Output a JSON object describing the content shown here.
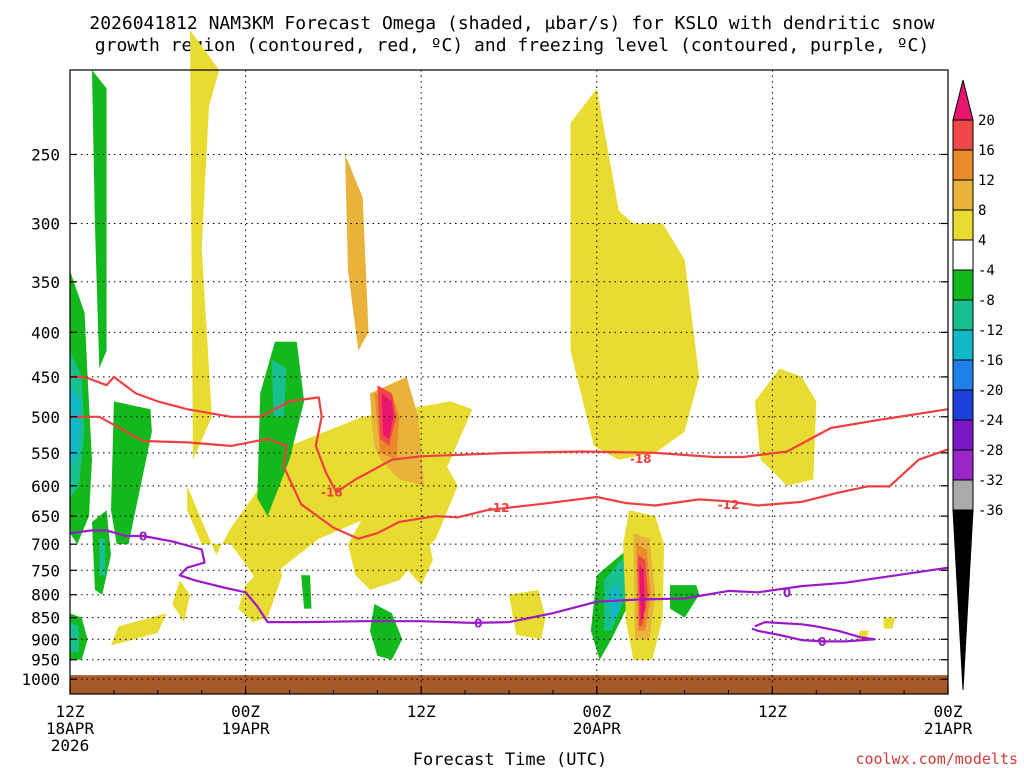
{
  "chart_data": {
    "type": "heatmap",
    "title_line1": "2026041812 NAM3KM Forecast Omega (shaded, μbar/s) for KSLO with dendritic snow",
    "title_line2": "growth region (contoured, red, ºC) and freezing level (contoured, purple, ºC)",
    "xlabel": "Forecast Time (UTC)",
    "credit": "coolwx.com/modelts",
    "x_ticks": [
      {
        "hours": 0,
        "line1": "12Z",
        "line2": "18APR",
        "line3": "2026"
      },
      {
        "hours": 12,
        "line1": "00Z",
        "line2": "19APR",
        "line3": ""
      },
      {
        "hours": 24,
        "line1": "12Z",
        "line2": "",
        "line3": ""
      },
      {
        "hours": 36,
        "line1": "00Z",
        "line2": "20APR",
        "line3": ""
      },
      {
        "hours": 48,
        "line1": "12Z",
        "line2": "",
        "line3": ""
      },
      {
        "hours": 60,
        "line1": "00Z",
        "line2": "21APR",
        "line3": ""
      }
    ],
    "xlim": [
      0,
      60
    ],
    "y_ticks": [
      250,
      300,
      350,
      400,
      450,
      500,
      550,
      600,
      650,
      700,
      750,
      800,
      850,
      900,
      950,
      1000
    ],
    "ylim": [
      1000,
      200
    ],
    "grid": true,
    "colorbar": {
      "labels": [
        "20",
        "16",
        "12",
        "8",
        "4",
        "-4",
        "-8",
        "-12",
        "-16",
        "-20",
        "-24",
        "-28",
        "-32",
        "-36"
      ],
      "colors": [
        "#e8156e",
        "#f04848",
        "#eb8a2a",
        "#e8b23b",
        "#e8dc32",
        "#ffffff",
        "#12b81c",
        "#18c08f",
        "#12b8c8",
        "#1f80e8",
        "#1f40d8",
        "#7a18c8",
        "#9a28c8",
        "#aaaaaa",
        "#000000"
      ]
    },
    "omega_regions": [
      {
        "color": "#e8dc32",
        "hours": [
          8.2,
          10.2,
          9.5,
          9.0,
          9.7,
          8.4
        ],
        "p": [
          180,
          200,
          220,
          320,
          500,
          560
        ]
      },
      {
        "color": "#e8dc32",
        "hours": [
          8.0,
          10.0,
          11.0,
          15.0,
          20.0,
          26.0,
          27.5,
          26.0,
          25.0,
          17.0,
          13.0,
          11.0,
          9.0,
          8.0
        ],
        "p": [
          600,
          720,
          670,
          540,
          500,
          480,
          490,
          560,
          605,
          690,
          780,
          700,
          700,
          640
        ]
      },
      {
        "color": "#e8dc32",
        "hours": [
          19.0,
          21.0,
          23.0,
          25.5,
          26.5,
          25.0,
          22.5,
          20.5,
          19.5
        ],
        "p": [
          700,
          610,
          580,
          560,
          600,
          690,
          770,
          790,
          760
        ]
      },
      {
        "color": "#e8dc32",
        "hours": [
          34.2,
          36.0,
          37.5,
          38.5,
          40.5,
          42.0,
          43.0,
          42.0,
          40.0,
          37.5,
          35.8,
          34.2
        ],
        "p": [
          230,
          210,
          290,
          300,
          300,
          330,
          450,
          520,
          550,
          560,
          540,
          420
        ]
      },
      {
        "color": "#e8dc32",
        "hours": [
          48.5,
          50.0,
          51.0,
          50.8,
          49.0,
          47.2,
          46.8
        ],
        "p": [
          440,
          450,
          480,
          590,
          600,
          560,
          480
        ]
      },
      {
        "color": "#e8dc32",
        "hours": [
          12.0,
          14.0,
          14.5,
          13.5,
          12.5,
          11.5
        ],
        "p": [
          780,
          720,
          760,
          850,
          860,
          830
        ]
      },
      {
        "color": "#e8dc32",
        "hours": [
          7.5,
          8.2,
          7.8,
          7.0
        ],
        "p": [
          770,
          800,
          860,
          820
        ]
      },
      {
        "color": "#e8dc32",
        "hours": [
          3.3,
          6.6,
          6.0,
          2.8
        ],
        "p": [
          870,
          840,
          885,
          915
        ]
      },
      {
        "color": "#e8dc32",
        "hours": [
          23.0,
          24.5,
          24.8,
          24.0,
          22.8
        ],
        "p": [
          680,
          690,
          730,
          780,
          740
        ]
      },
      {
        "color": "#e8dc32",
        "hours": [
          30.0,
          32.0,
          32.5,
          32.2,
          30.5
        ],
        "p": [
          800,
          790,
          850,
          900,
          890
        ]
      },
      {
        "color": "#e8dc32",
        "hours": [
          55.6,
          56.4,
          56.2,
          55.6
        ],
        "p": [
          850,
          850,
          875,
          875
        ]
      },
      {
        "color": "#e8dc32",
        "hours": [
          54.0,
          54.6,
          54.4,
          53.8
        ],
        "p": [
          880,
          880,
          900,
          900
        ]
      },
      {
        "color": "#e8b23b",
        "hours": [
          18.8,
          20.0,
          20.4,
          19.7,
          19.0
        ],
        "p": [
          250,
          280,
          400,
          420,
          340
        ]
      },
      {
        "color": "#e8b23b",
        "hours": [
          20.5,
          23.0,
          23.8,
          24.2,
          22.5,
          21.2,
          20.8,
          20.6
        ],
        "p": [
          470,
          450,
          500,
          600,
          590,
          560,
          540,
          500
        ]
      },
      {
        "color": "#eb8a2a",
        "hours": [
          20.8,
          22.0,
          22.5,
          22.3,
          21.2
        ],
        "p": [
          470,
          470,
          500,
          560,
          550
        ]
      },
      {
        "color": "#f04848",
        "hours": [
          21.0,
          22.0,
          22.3,
          21.8,
          21.2
        ],
        "p": [
          460,
          470,
          500,
          540,
          530
        ]
      },
      {
        "color": "#e8156e",
        "hours": [
          21.3,
          22.0,
          22.1,
          21.8,
          21.4
        ],
        "p": [
          470,
          480,
          500,
          530,
          525
        ]
      },
      {
        "color": "#12b81c",
        "hours": [
          0.0,
          1.0,
          1.2,
          1.5,
          1.3,
          0.5,
          0.0
        ],
        "p": [
          340,
          380,
          450,
          560,
          650,
          700,
          680
        ]
      },
      {
        "color": "#18c08f",
        "hours": [
          0.0,
          0.8,
          1.0,
          0.6,
          0.0
        ],
        "p": [
          420,
          450,
          520,
          600,
          620
        ]
      },
      {
        "color": "#12b8c8",
        "hours": [
          0.0,
          0.7,
          0.6,
          0.0
        ],
        "p": [
          460,
          480,
          550,
          570
        ]
      },
      {
        "color": "#12b81c",
        "hours": [
          1.5,
          2.5,
          2.5,
          2.0,
          1.7
        ],
        "p": [
          200,
          210,
          420,
          440,
          300
        ]
      },
      {
        "color": "#12b81c",
        "hours": [
          3.0,
          5.5,
          5.6,
          4.0,
          3.2,
          2.8
        ],
        "p": [
          480,
          490,
          520,
          700,
          700,
          640
        ]
      },
      {
        "color": "#12b81c",
        "hours": [
          1.5,
          2.5,
          2.8,
          2.2,
          1.7
        ],
        "p": [
          660,
          640,
          720,
          800,
          790
        ]
      },
      {
        "color": "#18c08f",
        "hours": [
          2.0,
          2.4,
          2.4,
          2.0
        ],
        "p": [
          690,
          690,
          760,
          760
        ]
      },
      {
        "color": "#12b81c",
        "hours": [
          0.0,
          0.8,
          1.2,
          0.8,
          0.0
        ],
        "p": [
          840,
          850,
          900,
          950,
          950
        ]
      },
      {
        "color": "#18c08f",
        "hours": [
          0.0,
          0.6,
          0.6,
          0.0
        ],
        "p": [
          860,
          870,
          930,
          930
        ]
      },
      {
        "color": "#12b81c",
        "hours": [
          13.0,
          14.0,
          15.5,
          16.0,
          15.0,
          13.5,
          12.8
        ],
        "p": [
          470,
          410,
          410,
          480,
          560,
          650,
          620
        ]
      },
      {
        "color": "#18c08f",
        "hours": [
          13.8,
          14.8,
          14.6,
          13.9
        ],
        "p": [
          430,
          440,
          500,
          500
        ]
      },
      {
        "color": "#12b81c",
        "hours": [
          15.8,
          16.4,
          16.5,
          16.0
        ],
        "p": [
          760,
          760,
          830,
          830
        ]
      },
      {
        "color": "#12b81c",
        "hours": [
          20.8,
          22.0,
          22.7,
          22.0,
          21.0,
          20.5
        ],
        "p": [
          820,
          840,
          900,
          950,
          940,
          880
        ]
      },
      {
        "color": "#12b81c",
        "hours": [
          36.0,
          38.5,
          38.5,
          37.0,
          36.2,
          35.6
        ],
        "p": [
          760,
          700,
          800,
          900,
          950,
          880
        ]
      },
      {
        "color": "#18c08f",
        "hours": [
          36.5,
          38.0,
          38.0,
          37.0,
          36.5
        ],
        "p": [
          770,
          720,
          800,
          880,
          880
        ]
      },
      {
        "color": "#12b8c8",
        "hours": [
          36.9,
          37.5,
          37.5,
          37.0
        ],
        "p": [
          790,
          780,
          840,
          860
        ]
      },
      {
        "color": "#12b81c",
        "hours": [
          41.0,
          42.8,
          43.0,
          42.0,
          41.0
        ],
        "p": [
          780,
          780,
          800,
          850,
          830
        ]
      },
      {
        "color": "#12b81c",
        "hours": [
          38.2,
          38.7,
          38.8,
          38.3
        ],
        "p": [
          700,
          700,
          780,
          780
        ]
      },
      {
        "color": "#12b81c",
        "hours": [
          39.5,
          40.0,
          40.2,
          39.6
        ],
        "p": [
          700,
          700,
          780,
          780
        ]
      },
      {
        "color": "#e8dc32",
        "hours": [
          38.2,
          40.0,
          40.6,
          40.5,
          39.8,
          38.5,
          38.0,
          37.8
        ],
        "p": [
          640,
          650,
          700,
          850,
          950,
          950,
          860,
          700
        ]
      },
      {
        "color": "#e8b23b",
        "hours": [
          38.5,
          39.6,
          40.0,
          39.6,
          38.6
        ],
        "p": [
          680,
          690,
          800,
          900,
          900
        ]
      },
      {
        "color": "#eb8a2a",
        "hours": [
          38.7,
          39.4,
          39.7,
          39.3,
          38.8
        ],
        "p": [
          700,
          710,
          800,
          880,
          880
        ]
      },
      {
        "color": "#f04848",
        "hours": [
          38.8,
          39.3,
          39.5,
          39.1,
          38.9
        ],
        "p": [
          720,
          730,
          800,
          870,
          870
        ]
      },
      {
        "color": "#e8156e",
        "hours": [
          38.9,
          39.2,
          39.3,
          39.0
        ],
        "p": [
          740,
          750,
          830,
          860
        ]
      }
    ],
    "dendritic_growth_contours": [
      {
        "label": "-18",
        "label_at": [
          17.9,
          610
        ],
        "hours": [
          0.0,
          1.0,
          2.5,
          3.0,
          4.5,
          6.0,
          8.0,
          11.0,
          13.0,
          15.0,
          17.0,
          17.2,
          16.8,
          17.5,
          18.2,
          19.5,
          22.0,
          24.0,
          30.0,
          35.0,
          40.0,
          44.0,
          46.0,
          49.0,
          52.0,
          55.0,
          60.0
        ],
        "p": [
          450,
          450,
          460,
          450,
          470,
          480,
          490,
          500,
          500,
          480,
          475,
          500,
          540,
          580,
          610,
          590,
          560,
          555,
          550,
          548,
          550,
          556,
          556,
          548,
          515,
          505,
          490
        ]
      },
      {
        "label": "-12",
        "label_at": [
          29.3,
          635
        ],
        "hours": [
          0.0,
          2.0,
          5.0,
          8.0,
          11.0,
          13.5,
          14.8,
          14.6,
          15.8,
          18.0,
          19.7,
          21.0,
          22.5,
          25.0,
          26.5,
          28.5,
          32.0,
          36.0,
          38.0,
          40.0,
          43.0,
          45.0,
          47.0,
          50.0,
          52.5,
          54.5,
          56.0,
          58.0,
          60.0
        ],
        "p": [
          500,
          500,
          533,
          535,
          540,
          530,
          540,
          570,
          630,
          670,
          690,
          680,
          660,
          650,
          652,
          640,
          630,
          618,
          628,
          632,
          622,
          625,
          632,
          626,
          611,
          601,
          601,
          560,
          545
        ]
      },
      {
        "label": "-12",
        "label_at": [
          45.0,
          630
        ],
        "hours": [],
        "p": []
      },
      {
        "label": "-18",
        "label_at": [
          39.0,
          558
        ],
        "hours": [],
        "p": []
      }
    ],
    "freezing_level_contours": [
      {
        "label": "0",
        "label_at": [
          5.0,
          685
        ],
        "hours": [
          0.0,
          1.5,
          2.5,
          3.8,
          5.0,
          7.0,
          9.0,
          9.2,
          8.0,
          7.5,
          8.5,
          10.5,
          12.0,
          12.8,
          13.5,
          16.0,
          20.0,
          24.0,
          27.5,
          30.0,
          33.0,
          36.0,
          39.0,
          42.0,
          45.0,
          47.0,
          50.0,
          53.0,
          56.0,
          60.0
        ],
        "p": [
          680,
          675,
          675,
          685,
          685,
          695,
          710,
          735,
          745,
          760,
          770,
          785,
          795,
          825,
          860,
          860,
          858,
          858,
          862,
          860,
          840,
          815,
          810,
          808,
          792,
          795,
          782,
          775,
          762,
          745
        ]
      },
      {
        "label": "0",
        "label_at": [
          27.9,
          862
        ],
        "hours": [],
        "p": []
      },
      {
        "label": "0",
        "label_at": [
          49.0,
          795
        ],
        "hours": [],
        "p": []
      },
      {
        "label": "0",
        "label_at": [
          51.4,
          905
        ],
        "hours": [
          46.8,
          47.5,
          50.0,
          51.0,
          52.5,
          54.0,
          55.0,
          53.0,
          51.5,
          50.0,
          48.5,
          47.0,
          46.6
        ],
        "p": [
          870,
          860,
          865,
          870,
          880,
          895,
          900,
          905,
          905,
          902,
          890,
          880,
          875
        ]
      }
    ]
  }
}
